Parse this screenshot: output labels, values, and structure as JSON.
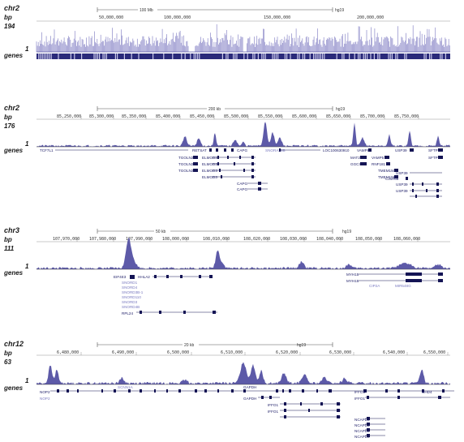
{
  "colors": {
    "signal": "#5d5aa8",
    "signal_light": "#9b98cf",
    "gene": "#141454",
    "gene_light": "#8c8ccc",
    "axis": "#555555"
  },
  "panels": [
    {
      "chrom": "chr2",
      "bp_label": "bp",
      "max": "194",
      "one": "1",
      "genes_label": "genes",
      "scale_text": "100 Mb",
      "assembly": "hg19",
      "ticks": [
        "50,000,000",
        "100,000,000",
        "150,000,000",
        "200,000,000"
      ],
      "genes": []
    },
    {
      "chrom": "chr2",
      "bp_label": "bp",
      "max": "176",
      "one": "1",
      "genes_label": "genes",
      "scale_text": "200 kb",
      "assembly": "hg19",
      "ticks": [
        "85,250,000",
        "85,300,000",
        "85,350,000",
        "85,400,000",
        "85,450,000",
        "85,500,000",
        "85,550,000",
        "85,600,000",
        "85,650,000",
        "85,700,000",
        "85,750,000"
      ],
      "genes": [
        "TCF7L1",
        "RETSAT",
        "CAPG",
        "ELMOD3",
        "TGOLN2",
        "TGOLN2",
        "TGOLN2",
        "ELMOD3",
        "ELMOD3",
        "ELMOD3",
        "CAPG",
        "CAPG",
        "SNORA36B",
        "LOC100630910",
        "MAT2A",
        "GGCX",
        "GGCX",
        "VAMP8",
        "VAMP5",
        "RNF181",
        "TMEM150A",
        "TMEM150A",
        "USP39",
        "C2orf68",
        "USP39",
        "USP39",
        "USP39",
        "SFTPB",
        "SFTPB"
      ]
    },
    {
      "chrom": "chr3",
      "bp_label": "bp",
      "max": "111",
      "one": "1",
      "genes_label": "genes",
      "scale_text": "50 kb",
      "assembly": "hg19",
      "ticks": [
        "107,970,000",
        "107,980,000",
        "107,990,000",
        "108,000,000",
        "108,010,000",
        "108,020,000",
        "108,030,000",
        "108,040,000",
        "108,050,000",
        "108,060,000"
      ],
      "genes": [
        "EIF4E3",
        "HHLA2",
        "SNORD1",
        "SNORD4",
        "SNORD3B-1",
        "SNORD110",
        "SNORD3",
        "SNORD4B",
        "RPL24",
        "MYH15",
        "MYH15",
        "CIP2A",
        "MIR548G"
      ]
    },
    {
      "chrom": "chr12",
      "bp_label": "bp",
      "max": "63",
      "one": "1",
      "genes_label": "genes",
      "scale_text": "20 kb",
      "assembly": "hg19",
      "ticks": [
        "6,480,000",
        "6,490,000",
        "6,500,000",
        "6,510,000",
        "6,520,000",
        "6,530,000",
        "6,540,000",
        "6,550,000"
      ],
      "genes": [
        "NOP2",
        "NOP2",
        "SCNN1A",
        "GAPDH",
        "GAPDH",
        "IFFO1",
        "IFFO1",
        "IFFO1",
        "IFFO1",
        "NCAPD2",
        "NCAPD2",
        "NCAPD2",
        "NCAPD2",
        "CHD4"
      ]
    }
  ]
}
